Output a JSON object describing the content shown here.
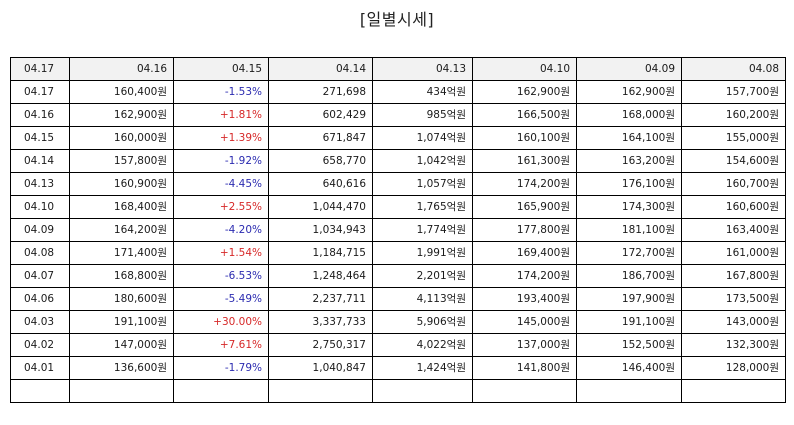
{
  "title": "[일별시세]",
  "colors": {
    "up": "#d62828",
    "down": "#2b2bb0",
    "header_bg": "#f2f2f2"
  },
  "headers": [
    "04.17",
    "04.16",
    "04.15",
    "04.14",
    "04.13",
    "04.10",
    "04.09",
    "04.08"
  ],
  "rows": [
    [
      "04.17",
      "160,400원",
      "-1.53%",
      "271,698",
      "434억원",
      "162,900원",
      "162,900원",
      "157,700원"
    ],
    [
      "04.16",
      "162,900원",
      "+1.81%",
      "602,429",
      "985억원",
      "166,500원",
      "168,000원",
      "160,200원"
    ],
    [
      "04.15",
      "160,000원",
      "+1.39%",
      "671,847",
      "1,074억원",
      "160,100원",
      "164,100원",
      "155,000원"
    ],
    [
      "04.14",
      "157,800원",
      "-1.92%",
      "658,770",
      "1,042억원",
      "161,300원",
      "163,200원",
      "154,600원"
    ],
    [
      "04.13",
      "160,900원",
      "-4.45%",
      "640,616",
      "1,057억원",
      "174,200원",
      "176,100원",
      "160,700원"
    ],
    [
      "04.10",
      "168,400원",
      "+2.55%",
      "1,044,470",
      "1,765억원",
      "165,900원",
      "174,300원",
      "160,600원"
    ],
    [
      "04.09",
      "164,200원",
      "-4.20%",
      "1,034,943",
      "1,774억원",
      "177,800원",
      "181,100원",
      "163,400원"
    ],
    [
      "04.08",
      "171,400원",
      "+1.54%",
      "1,184,715",
      "1,991억원",
      "169,400원",
      "172,700원",
      "161,000원"
    ],
    [
      "04.07",
      "168,800원",
      "-6.53%",
      "1,248,464",
      "2,201억원",
      "174,200원",
      "186,700원",
      "167,800원"
    ],
    [
      "04.06",
      "180,600원",
      "-5.49%",
      "2,237,711",
      "4,113억원",
      "193,400원",
      "197,900원",
      "173,500원"
    ],
    [
      "04.03",
      "191,100원",
      "+30.00%",
      "3,337,733",
      "5,906억원",
      "145,000원",
      "191,100원",
      "143,000원"
    ],
    [
      "04.02",
      "147,000원",
      "+7.61%",
      "2,750,317",
      "4,022억원",
      "137,000원",
      "152,500원",
      "132,300원"
    ],
    [
      "04.01",
      "136,600원",
      "-1.79%",
      "1,040,847",
      "1,424억원",
      "141,800원",
      "146,400원",
      "128,000원"
    ],
    [
      "",
      "",
      "",
      "",
      "",
      "",
      "",
      ""
    ]
  ]
}
